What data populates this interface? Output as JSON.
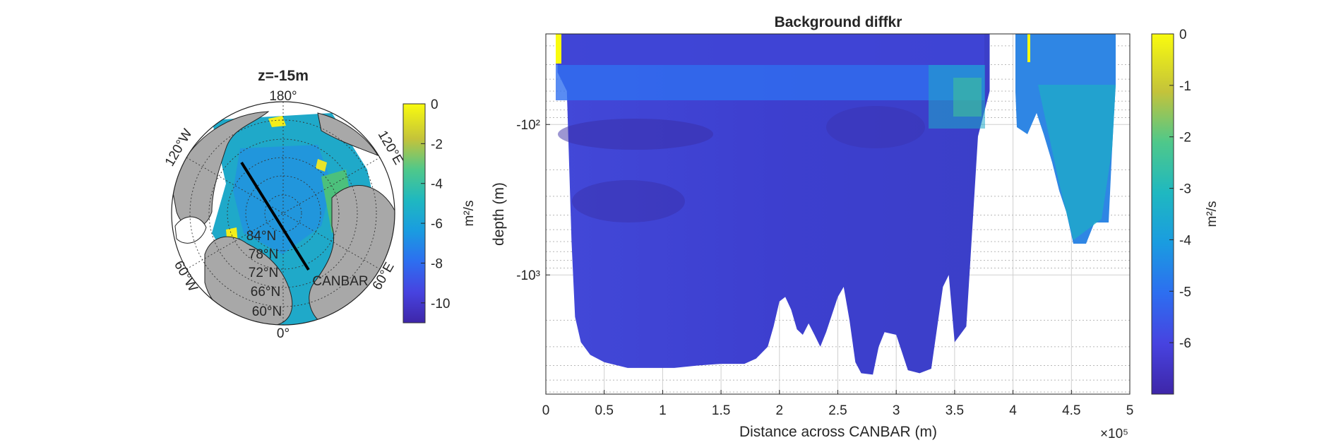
{
  "chart_data": [
    {
      "type": "heatmap",
      "title": "z=-15m",
      "projection": "north polar stereographic",
      "longitude_labels": [
        "180°",
        "120°E",
        "60°E",
        "0°",
        "60°W",
        "120°W"
      ],
      "latitude_labels": [
        "84°N",
        "78°N",
        "72°N",
        "66°N",
        "60°N"
      ],
      "section_line_label": "CANBAR",
      "colorbar": {
        "label": "m²/s",
        "ticks": [
          "0",
          "-2",
          "-4",
          "-6",
          "-8",
          "-10"
        ],
        "range": [
          -11,
          0
        ],
        "colormap": "parula"
      },
      "land_color": "#a8a8a8"
    },
    {
      "type": "heatmap",
      "title": "Background diffkr",
      "xlabel": "Distance across CANBAR (m)",
      "ylabel": "depth (m)",
      "x_ticks": [
        "0",
        "0.5",
        "1",
        "1.5",
        "2",
        "2.5",
        "3",
        "3.5",
        "4",
        "4.5",
        "5"
      ],
      "x_exponent": "×10⁵",
      "xlim": [
        0,
        500000
      ],
      "y_scale": "log",
      "y_ticks": [
        "-10²",
        "-10³"
      ],
      "ylim": [
        -6200,
        -25
      ],
      "grid": true,
      "colorbar": {
        "label": "m²/s",
        "ticks": [
          "0",
          "-1",
          "-2",
          "-3",
          "-4",
          "-5",
          "-6"
        ],
        "range": [
          -7,
          0
        ],
        "colormap": "parula"
      },
      "bottom_profile": {
        "distance_m": [
          10000,
          18000,
          22000,
          25000,
          30000,
          38000,
          50000,
          70000,
          90000,
          110000,
          130000,
          150000,
          170000,
          180000,
          190000,
          195000,
          200000,
          205000,
          210000,
          215000,
          220000,
          225000,
          230000,
          235000,
          240000,
          250000,
          255000,
          260000,
          265000,
          270000,
          280000,
          285000,
          290000,
          300000,
          310000,
          320000,
          330000,
          340000,
          345000,
          350000,
          360000,
          370000,
          380000
        ],
        "depth_m": [
          -45,
          -60,
          -600,
          -1900,
          -2800,
          -3400,
          -3800,
          -4150,
          -4150,
          -4150,
          -4000,
          -3900,
          -3900,
          -3600,
          -3000,
          -2200,
          -1500,
          -1400,
          -1700,
          -2300,
          -2500,
          -2100,
          -2500,
          -3000,
          -2400,
          -1400,
          -1200,
          -2000,
          -3800,
          -4500,
          -4600,
          -3000,
          -2400,
          -2500,
          -4300,
          -4500,
          -4200,
          -1200,
          -1000,
          -2800,
          -2200,
          -120,
          -60
        ]
      }
    }
  ]
}
